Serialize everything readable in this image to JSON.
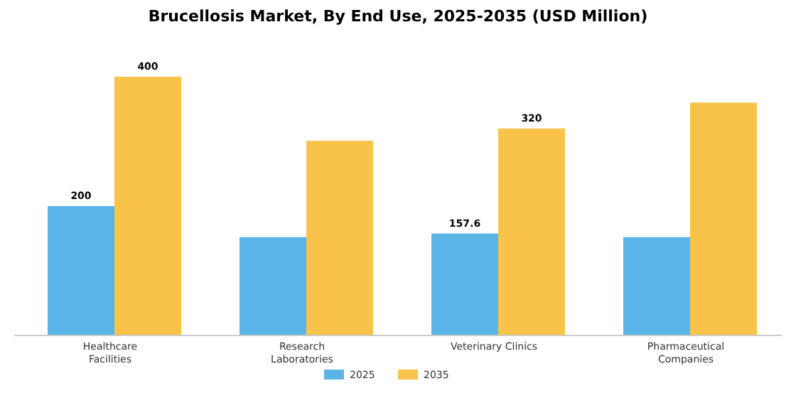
{
  "chart_data": {
    "type": "bar",
    "title": "Brucellosis Market, By End Use, 2025-2035 (USD Million)",
    "categories": [
      "Healthcare\nFacilities",
      "Research\nLaboratories",
      "Veterinary Clinics",
      "Pharmaceutical\nCompanies"
    ],
    "series": [
      {
        "name": "2025",
        "color": "#5ab4e5",
        "values": [
          200,
          152,
          157.6,
          152
        ],
        "value_labels": [
          "200",
          null,
          "157.6",
          null
        ]
      },
      {
        "name": "2035",
        "color": "#f9c34a",
        "values": [
          400,
          301,
          320,
          360
        ],
        "value_labels": [
          "400",
          null,
          "320",
          null
        ]
      }
    ],
    "legend": "bottom"
  }
}
